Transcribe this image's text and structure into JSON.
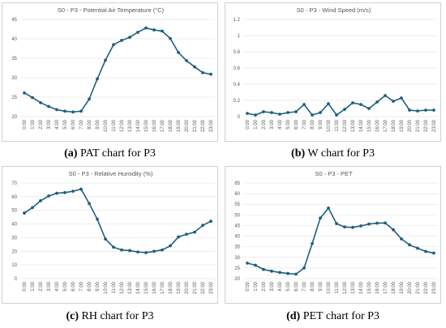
{
  "charts": [
    {
      "id": "pat",
      "caption_letter": "(a)",
      "caption_text": " PAT chart for P3",
      "chart_data": {
        "type": "line",
        "title": "S0 - P3 - Potential Air Temperature (°C)",
        "categories": [
          "0:00",
          "1:00",
          "2:00",
          "3:00",
          "4:00",
          "5:00",
          "6:00",
          "7:00",
          "8:00",
          "9:00",
          "10:00",
          "11:00",
          "12:00",
          "13:00",
          "14:00",
          "15:00",
          "16:00",
          "17:00",
          "18:00",
          "19:00",
          "20:00",
          "21:00",
          "22:00",
          "23:00"
        ],
        "values": [
          26.1,
          24.9,
          23.6,
          22.6,
          21.8,
          21.4,
          21.2,
          21.4,
          24.5,
          29.7,
          34.5,
          38.5,
          39.6,
          40.4,
          41.7,
          42.8,
          42.3,
          42.0,
          40.1,
          36.5,
          34.4,
          32.8,
          31.3,
          30.9
        ],
        "ylim": [
          20,
          45
        ],
        "yticks": [
          20,
          25,
          30,
          35,
          40,
          45
        ],
        "grid": true
      }
    },
    {
      "id": "w",
      "caption_letter": "(b)",
      "caption_text": " W chart for P3",
      "chart_data": {
        "type": "line",
        "title": "S0 - P3 - Wind Speed (m/s)",
        "categories": [
          "0:00",
          "1:00",
          "2:00",
          "3:00",
          "4:00",
          "5:00",
          "6:00",
          "7:00",
          "8:00",
          "9:00",
          "10:00",
          "11:00",
          "12:00",
          "13:00",
          "14:00",
          "15:00",
          "16:00",
          "17:00",
          "18:00",
          "19:00",
          "20:00",
          "21:00",
          "22:00",
          "23:00"
        ],
        "values": [
          0.04,
          0.02,
          0.06,
          0.05,
          0.03,
          0.05,
          0.06,
          0.15,
          0.02,
          0.05,
          0.16,
          0.02,
          0.09,
          0.17,
          0.15,
          0.1,
          0.18,
          0.26,
          0.19,
          0.23,
          0.08,
          0.07,
          0.08,
          0.08
        ],
        "ylim": [
          0,
          1.2
        ],
        "yticks": [
          0,
          0.2,
          0.4,
          0.6,
          0.8,
          1,
          1.2
        ],
        "grid": true
      }
    },
    {
      "id": "rh",
      "caption_letter": "(c)",
      "caption_text": " RH chart for P3",
      "chart_data": {
        "type": "line",
        "title": "S0 - P3 - Relative Humidity (%)",
        "categories": [
          "0:00",
          "1:00",
          "2:00",
          "3:00",
          "4:00",
          "5:00",
          "6:00",
          "7:00",
          "8:00",
          "9:00",
          "10:00",
          "11:00",
          "12:00",
          "13:00",
          "14:00",
          "15:00",
          "16:00",
          "17:00",
          "18:00",
          "19:00",
          "20:00",
          "21:00",
          "22:00",
          "23:00"
        ],
        "values": [
          48,
          52,
          57,
          60.5,
          62.5,
          63,
          64,
          65.5,
          55,
          43.5,
          29,
          23,
          21,
          20.5,
          19.5,
          19,
          20,
          21,
          24,
          30.5,
          32.5,
          34,
          39,
          42
        ],
        "ylim": [
          0,
          70
        ],
        "yticks": [
          0,
          10,
          20,
          30,
          40,
          50,
          60,
          70
        ],
        "grid": true
      }
    },
    {
      "id": "pet",
      "caption_letter": "(d)",
      "caption_text": " PET chart for P3",
      "chart_data": {
        "type": "line",
        "title": "S0 - P3 - PET",
        "categories": [
          "0:00",
          "1:00",
          "2:00",
          "3:00",
          "4:00",
          "5:00",
          "6:00",
          "7:00",
          "8:00",
          "9:00",
          "10:00",
          "11:00",
          "12:00",
          "13:00",
          "14:00",
          "15:00",
          "16:00",
          "17:00",
          "18:00",
          "19:00",
          "20:00",
          "21:00",
          "22:00",
          "23:00"
        ],
        "values": [
          27.3,
          26.3,
          24.3,
          23.5,
          22.9,
          22.4,
          22.1,
          25.0,
          36.5,
          48.5,
          53.2,
          45.9,
          44.3,
          44.1,
          44.8,
          45.7,
          46.1,
          46.2,
          43.0,
          38.7,
          35.9,
          34.3,
          32.8,
          32.0
        ],
        "ylim": [
          20,
          65
        ],
        "yticks": [
          20,
          25,
          30,
          35,
          40,
          45,
          50,
          55,
          60,
          65
        ],
        "grid": true
      }
    }
  ]
}
